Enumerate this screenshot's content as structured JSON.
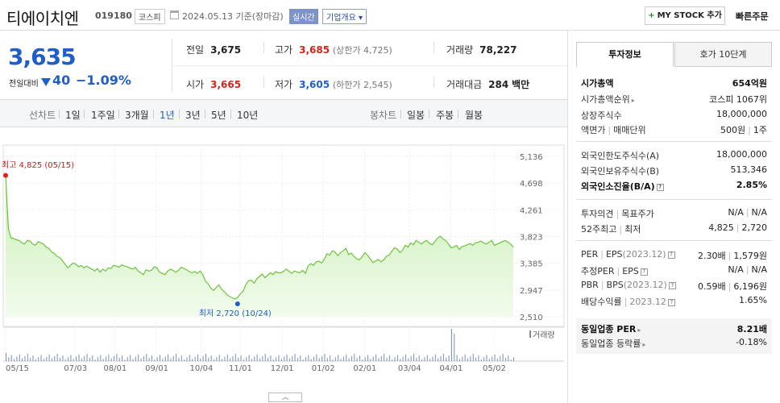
{
  "header": {
    "name": "티에이치엔",
    "code": "019180",
    "market": "코스피",
    "date": "2024.05.13 기준(장마감)",
    "realtime": "실시간",
    "corp_info": "기업개요",
    "mystock": "MY STOCK 추가",
    "quick_order": "빠른주문"
  },
  "price": {
    "current": "3,635",
    "prev_label": "전일대비",
    "change": "40",
    "change_pct": "−1.09%",
    "prev_close_label": "전일",
    "prev_close": "3,675",
    "high_label": "고가",
    "high": "3,685",
    "upper_limit": "(상한가 4,725)",
    "volume_label": "거래량",
    "volume": "78,227",
    "open_label": "시가",
    "open": "3,665",
    "low_label": "저가",
    "low": "3,605",
    "lower_limit": "(하한가 2,545)",
    "amount_label": "거래대금",
    "amount": "284",
    "amount_unit": "백만"
  },
  "tabs": {
    "line_label": "선차트",
    "periods": [
      "1일",
      "1주일",
      "3개월",
      "1년",
      "3년",
      "5년",
      "10년"
    ],
    "active": "1년",
    "candle_label": "봉차트",
    "candles": [
      "일봉",
      "주봉",
      "월봉"
    ]
  },
  "chart_data": {
    "type": "area",
    "x_ticks": [
      "05/15",
      "07/03",
      "08/01",
      "09/01",
      "10/04",
      "11/01",
      "12/01",
      "01/02",
      "02/01",
      "03/04",
      "04/01",
      "05/02"
    ],
    "y_ticks": [
      5136,
      4698,
      4261,
      3823,
      3385,
      2947,
      2510
    ],
    "ylim": [
      2510,
      5136
    ],
    "max_label": "최고 4,825 (05/15)",
    "min_label": "최저 2,720 (10/24)",
    "volume_label": "거래량",
    "values": [
      4825,
      3950,
      3800,
      3790,
      3770,
      3760,
      3720,
      3700,
      3760,
      3750,
      3700,
      3680,
      3740,
      3720,
      3700,
      3650,
      3630,
      3570,
      3550,
      3500,
      3480,
      3430,
      3370,
      3310,
      3350,
      3390,
      3370,
      3330,
      3350,
      3310,
      3340,
      3310,
      3290,
      3260,
      3300,
      3240,
      3290,
      3260,
      3310,
      3300,
      3350,
      3340,
      3320,
      3360,
      3340,
      3330,
      3310,
      3290,
      3320,
      3260,
      3230,
      3200,
      3280,
      3260,
      3270,
      3330,
      3310,
      3240,
      3220,
      3200,
      3260,
      3290,
      3270,
      3240,
      3270,
      3320,
      3300,
      3280,
      3250,
      3230,
      3250,
      3220,
      3260,
      3200,
      3090,
      3050,
      2980,
      2940,
      2990,
      3030,
      2960,
      2920,
      2870,
      2840,
      2820,
      2800,
      2830,
      2890,
      2930,
      3040,
      3100,
      3110,
      3060,
      3130,
      3170,
      3210,
      3150,
      3190,
      3230,
      3200,
      3250,
      3230,
      3230,
      3260,
      3290,
      3250,
      3220,
      3260,
      3240,
      3230,
      3270,
      3220,
      3340,
      3380,
      3350,
      3410,
      3420,
      3390,
      3450,
      3540,
      3520,
      3590,
      3570,
      3510,
      3560,
      3590,
      3630,
      3530,
      3550,
      3500,
      3460,
      3440,
      3490,
      3560,
      3520,
      3460,
      3400,
      3420,
      3450,
      3410,
      3440,
      3500,
      3520,
      3580,
      3640,
      3620,
      3560,
      3600,
      3680,
      3650,
      3720,
      3690,
      3760,
      3730,
      3700,
      3740,
      3760,
      3710,
      3690,
      3740,
      3800,
      3830,
      3780,
      3760,
      3700,
      3640,
      3650,
      3680,
      3610,
      3660,
      3670,
      3690,
      3710,
      3680,
      3720,
      3730,
      3750,
      3720,
      3700,
      3730,
      3760,
      3680,
      3700,
      3720,
      3740,
      3760,
      3730,
      3700,
      3650
    ]
  },
  "info": {
    "tab_active": "투자정보",
    "tab_other": "호가 10단계",
    "market_cap_label": "시가총액",
    "market_cap": "654억원",
    "rank_label": "시가총액순위",
    "rank": "코스피 1067위",
    "shares_label": "상장주식수",
    "shares": "18,000,000",
    "par_label": "액면가",
    "unit_label": "매매단위",
    "par": "500원",
    "unit": "1주",
    "foreign_limit_label": "외국인한도주식수(A)",
    "foreign_limit": "18,000,000",
    "foreign_own_label": "외국인보유주식수(B)",
    "foreign_own": "513,346",
    "foreign_ratio_label": "외국인소진율(B/A)",
    "foreign_ratio": "2.85%",
    "opinion_label": "투자의견",
    "target_label": "목표주가",
    "opinion": "N/A",
    "target": "N/A",
    "w52_label": "52주최고",
    "w52_low_label": "최저",
    "w52_high": "4,825",
    "w52_low": "2,720",
    "per_label": "PER",
    "eps_label": "EPS",
    "eps_year": "(2023.12)",
    "per": "2.30배",
    "eps": "1,579원",
    "est_per_label": "추정PER",
    "est_eps_label": "EPS",
    "est_per": "N/A",
    "est_eps": "N/A",
    "pbr_label": "PBR",
    "bps_label": "BPS",
    "bps_year": "(2023.12)",
    "pbr": "0.59배",
    "bps": "6,196원",
    "div_label": "배당수익률",
    "div_year": "2023.12",
    "div": "1.65%",
    "ind_per_label": "동일업종 PER",
    "ind_per": "8.21배",
    "ind_rate_label": "동일업종 등락률",
    "ind_rate": "-0.18%"
  }
}
